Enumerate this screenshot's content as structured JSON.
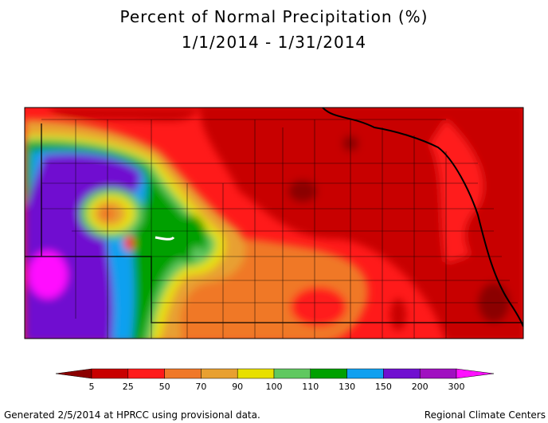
{
  "title": "Percent of Normal Precipitation (%)",
  "subtitle": "1/1/2014 - 1/31/2014",
  "legend": {
    "colors": [
      "#8b0000",
      "#c80000",
      "#ff1a1a",
      "#f07828",
      "#e8a030",
      "#e8e000",
      "#60c860",
      "#00a000",
      "#10a0f0",
      "#7010d0",
      "#a010c0",
      "#ff10ff"
    ],
    "ticks": [
      5,
      25,
      50,
      70,
      90,
      100,
      110,
      130,
      150,
      200,
      300
    ]
  },
  "footer": {
    "left": "Generated 2/5/2014 at HPRCC using provisional data.",
    "right": "Regional Climate Centers"
  }
}
